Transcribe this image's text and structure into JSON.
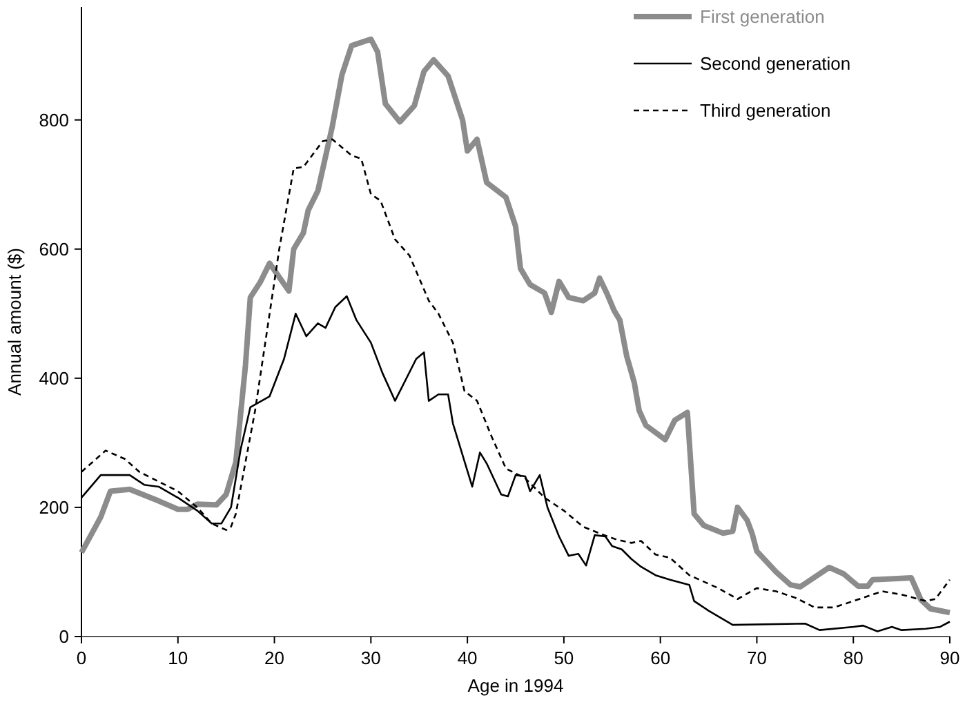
{
  "chart_data": {
    "type": "line",
    "xlabel": "Age in 1994",
    "ylabel": "Annual amount ($)",
    "xlim": [
      0,
      90
    ],
    "ylim": [
      0,
      975
    ],
    "xticks": [
      0,
      10,
      20,
      30,
      40,
      50,
      60,
      70,
      80,
      90
    ],
    "yticks": [
      0,
      200,
      400,
      600,
      800
    ],
    "grid": false,
    "legend": "top right",
    "marker": "none",
    "series": [
      {
        "name": "First generation",
        "color": "#8c8c8c",
        "line_style": "solid",
        "x": [
          0,
          2,
          3,
          5,
          8,
          10,
          11,
          12,
          14,
          15,
          16,
          17,
          17.5,
          18.5,
          19.5,
          21.5,
          22,
          23,
          23.5,
          24.5,
          26,
          27,
          28,
          30,
          30.7,
          31.5,
          33,
          34.5,
          35.5,
          36.5,
          38,
          39.5,
          40,
          41,
          42,
          44,
          45,
          45.5,
          46.5,
          48,
          48.7,
          49.5,
          50.5,
          52,
          53.2,
          53.7,
          54.5,
          55.2,
          55.8,
          56.5,
          57.3,
          57.8,
          58.5,
          60.5,
          61.5,
          62.8,
          63.5,
          64.5,
          66.5,
          67.5,
          68,
          69,
          69.5,
          70,
          72,
          73.5,
          74.5,
          77.5,
          79,
          80.5,
          81.5,
          82,
          86,
          87,
          88,
          90
        ],
        "values": [
          130,
          185,
          225,
          228,
          210,
          197,
          197,
          205,
          204,
          220,
          270,
          420,
          525,
          548,
          578,
          535,
          600,
          625,
          660,
          690,
          790,
          870,
          915,
          925,
          905,
          825,
          797,
          822,
          875,
          893,
          868,
          800,
          752,
          770,
          703,
          680,
          635,
          570,
          545,
          532,
          502,
          550,
          525,
          520,
          532,
          555,
          530,
          505,
          490,
          435,
          393,
          350,
          327,
          305,
          335,
          347,
          190,
          172,
          160,
          163,
          200,
          180,
          160,
          132,
          100,
          80,
          77,
          107,
          97,
          78,
          78,
          88,
          91,
          57,
          43,
          37
        ]
      },
      {
        "name": "Second generation",
        "color": "#000000",
        "line_style": "solid",
        "x": [
          0,
          2,
          5,
          6.5,
          8,
          10,
          12,
          13.5,
          14.5,
          15.5,
          16.5,
          17.5,
          19.5,
          21,
          22.2,
          23.3,
          24.5,
          25.3,
          26.3,
          27.5,
          28.5,
          30,
          31.2,
          32.5,
          34.7,
          35.5,
          36,
          37,
          38,
          38.5,
          40.5,
          41.3,
          42,
          43.5,
          44.2,
          45,
          46,
          46.5,
          47.5,
          48.3,
          49.5,
          50.5,
          51.5,
          52.3,
          53.2,
          54.3,
          55,
          56,
          57,
          58,
          59.5,
          61,
          63,
          63.5,
          65,
          67.5,
          75,
          76.5,
          80,
          81,
          82.5,
          84,
          85,
          87.5,
          89,
          90
        ],
        "values": [
          215,
          250,
          250,
          235,
          232,
          215,
          195,
          175,
          175,
          200,
          290,
          355,
          372,
          430,
          500,
          465,
          485,
          478,
          510,
          527,
          490,
          455,
          408,
          365,
          430,
          440,
          365,
          375,
          375,
          330,
          232,
          285,
          268,
          220,
          217,
          250,
          248,
          225,
          250,
          200,
          155,
          125,
          128,
          110,
          157,
          155,
          140,
          135,
          120,
          108,
          95,
          88,
          80,
          55,
          40,
          18,
          20,
          10,
          15,
          17,
          8,
          15,
          10,
          12,
          15,
          23
        ]
      },
      {
        "name": "Third generation",
        "color": "#000000",
        "line_style": "dashed",
        "x": [
          0,
          2.5,
          4.5,
          6,
          8,
          10,
          12,
          13.5,
          15,
          15.5,
          16,
          17,
          18,
          19,
          20.5,
          22,
          23,
          25,
          26,
          28,
          29,
          30,
          31,
          32.5,
          34,
          36,
          37,
          38.5,
          39.7,
          41,
          42.5,
          44,
          46,
          48,
          50,
          52,
          54,
          55.5,
          57,
          58,
          59.5,
          61,
          63,
          66,
          68,
          70,
          72,
          74,
          76,
          78,
          80,
          82,
          83,
          85,
          87.5,
          88.5,
          90
        ],
        "values": [
          255,
          288,
          275,
          255,
          240,
          225,
          200,
          175,
          165,
          170,
          190,
          270,
          350,
          450,
          600,
          725,
          727,
          767,
          770,
          745,
          740,
          685,
          675,
          615,
          590,
          520,
          500,
          455,
          380,
          365,
          310,
          260,
          245,
          215,
          195,
          170,
          158,
          150,
          145,
          148,
          127,
          122,
          95,
          75,
          58,
          75,
          70,
          60,
          45,
          45,
          55,
          65,
          70,
          65,
          55,
          58,
          88
        ]
      }
    ]
  }
}
